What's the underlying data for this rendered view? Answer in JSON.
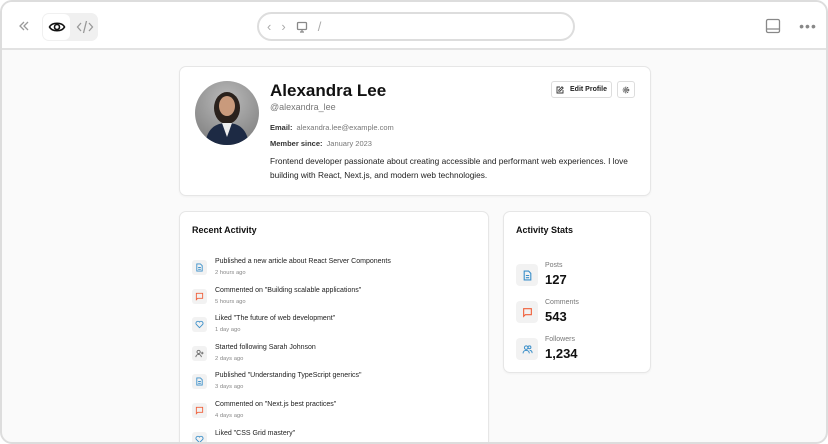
{
  "browser": {
    "url": "/"
  },
  "profile": {
    "name": "Alexandra Lee",
    "handle": "@alexandra_lee",
    "email_label": "Email:",
    "email": "alexandra.lee@example.com",
    "member_label": "Member since:",
    "member_since": "January 2023",
    "bio": "Frontend developer passionate about creating accessible and performant web experiences. I love building with React, Next.js, and modern web technologies.",
    "edit_label": "Edit Profile"
  },
  "activity": {
    "title": "Recent Activity",
    "items": [
      {
        "icon": "file-text-icon",
        "text": "Published a new article about React Server Components",
        "time": "2 hours ago"
      },
      {
        "icon": "message-square-icon",
        "text": "Commented on \"Building scalable applications\"",
        "time": "5 hours ago"
      },
      {
        "icon": "heart-icon",
        "text": "Liked \"The future of web development\"",
        "time": "1 day ago"
      },
      {
        "icon": "user-plus-icon",
        "text": "Started following Sarah Johnson",
        "time": "2 days ago"
      },
      {
        "icon": "file-text-icon",
        "text": "Published \"Understanding TypeScript generics\"",
        "time": "3 days ago"
      },
      {
        "icon": "message-square-icon",
        "text": "Commented on \"Next.js best practices\"",
        "time": "4 days ago"
      },
      {
        "icon": "heart-icon",
        "text": "Liked \"CSS Grid mastery\"",
        "time": ""
      }
    ]
  },
  "stats": {
    "title": "Activity Stats",
    "items": [
      {
        "icon": "file-text-icon",
        "label": "Posts",
        "value": "127"
      },
      {
        "icon": "message-square-icon",
        "label": "Comments",
        "value": "543"
      },
      {
        "icon": "users-icon",
        "label": "Followers",
        "value": "1,234"
      }
    ]
  },
  "colors": {
    "blue": "#3b8fc9",
    "orange": "#ef5f3a",
    "gray": "#666666"
  }
}
